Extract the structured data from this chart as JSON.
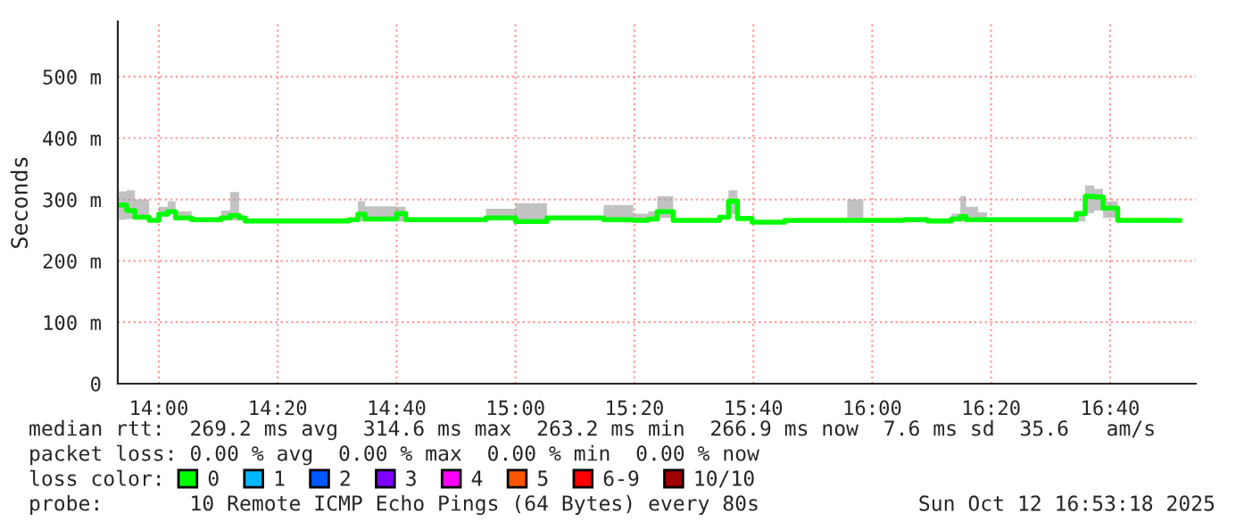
{
  "chart_data": {
    "type": "step",
    "ylabel": "Seconds",
    "xlim": [
      13.885,
      16.907
    ],
    "ylim": [
      0,
      590
    ],
    "xticks": [
      {
        "value": 14,
        "label": "14:00"
      },
      {
        "value": 14.3333,
        "label": "14:20"
      },
      {
        "value": 14.6667,
        "label": "14:40"
      },
      {
        "value": 15,
        "label": "15:00"
      },
      {
        "value": 15.3333,
        "label": "15:20"
      },
      {
        "value": 15.6667,
        "label": "15:40"
      },
      {
        "value": 16,
        "label": "16:00"
      },
      {
        "value": 16.3333,
        "label": "16:20"
      },
      {
        "value": 16.6667,
        "label": "16:40"
      }
    ],
    "yticks": [
      0,
      {
        "value": 100,
        "label": "100 m"
      },
      {
        "value": 200,
        "label": "200 m"
      },
      {
        "value": 300,
        "label": "300 m"
      },
      {
        "value": 400,
        "label": "400 m"
      },
      {
        "value": 500,
        "label": "500 m"
      }
    ],
    "grid": true,
    "legend": "bottom",
    "legend_title": "loss color:",
    "series": [
      {
        "name": "0",
        "color": "#00ff00",
        "x": [
          13.888,
          13.91,
          13.933,
          13.973,
          14.0,
          14.025,
          14.047,
          14.092,
          14.175,
          14.2,
          14.225,
          14.242,
          14.533,
          14.558,
          14.578,
          14.667,
          14.692,
          14.917,
          15.0,
          15.088,
          15.247,
          15.255,
          15.33,
          15.372,
          15.397,
          15.442,
          15.572,
          15.597,
          15.622,
          15.663,
          15.755,
          15.93,
          15.975,
          16.088,
          16.155,
          16.222,
          16.247,
          16.263,
          16.297,
          16.322,
          16.572,
          16.597,
          16.622,
          16.647,
          16.688,
          16.863
        ],
        "values": [
          291,
          282,
          271,
          266,
          276,
          280,
          270,
          267,
          270,
          274,
          270,
          265,
          267,
          276,
          268,
          277,
          267,
          270,
          264,
          270,
          267,
          267,
          266,
          268,
          280,
          266,
          271,
          297,
          269,
          263,
          266,
          266,
          266,
          267,
          265,
          268,
          272,
          267,
          267,
          267,
          277,
          305,
          304,
          286,
          266,
          266
        ],
        "lower": [
          267,
          268,
          269,
          264,
          272,
          276,
          268,
          267,
          267,
          266,
          270,
          265,
          267,
          264,
          266,
          264,
          267,
          268,
          262,
          270,
          267,
          267,
          265,
          267,
          270,
          266,
          269,
          276,
          269,
          263,
          266,
          266,
          266,
          267,
          265,
          268,
          264,
          267,
          267,
          267,
          264,
          278,
          282,
          270,
          266,
          266
        ],
        "upper": [
          313,
          315,
          300,
          266,
          288,
          297,
          281,
          267,
          282,
          312,
          270,
          265,
          267,
          297,
          289,
          288,
          267,
          285,
          294,
          270,
          291,
          291,
          277,
          281,
          305,
          266,
          274,
          315,
          269,
          263,
          266,
          300,
          266,
          271,
          265,
          277,
          305,
          288,
          279,
          267,
          277,
          323,
          317,
          297,
          266,
          266
        ]
      },
      {
        "name": "1",
        "color": "#00b8ff"
      },
      {
        "name": "2",
        "color": "#0059ff"
      },
      {
        "name": "3",
        "color": "#7e00ff"
      },
      {
        "name": "4",
        "color": "#ff00ff"
      },
      {
        "name": "5",
        "color": "#ff5500"
      },
      {
        "name": "6-9",
        "color": "#ff0000"
      },
      {
        "name": "10/10",
        "color": "#a10000"
      }
    ],
    "annotations": [
      "median rtt:  269.2 ms avg  314.6 ms max  263.2 ms min  266.9 ms now  7.6 ms sd  35.6   am/s",
      "packet loss: 0.00 % avg  0.00 % max  0.00 % min  0.00 % now",
      "probe:       10 Remote ICMP Echo Pings (64 Bytes) every 80s",
      "Sun Oct 12 16:53:18 2025"
    ]
  }
}
